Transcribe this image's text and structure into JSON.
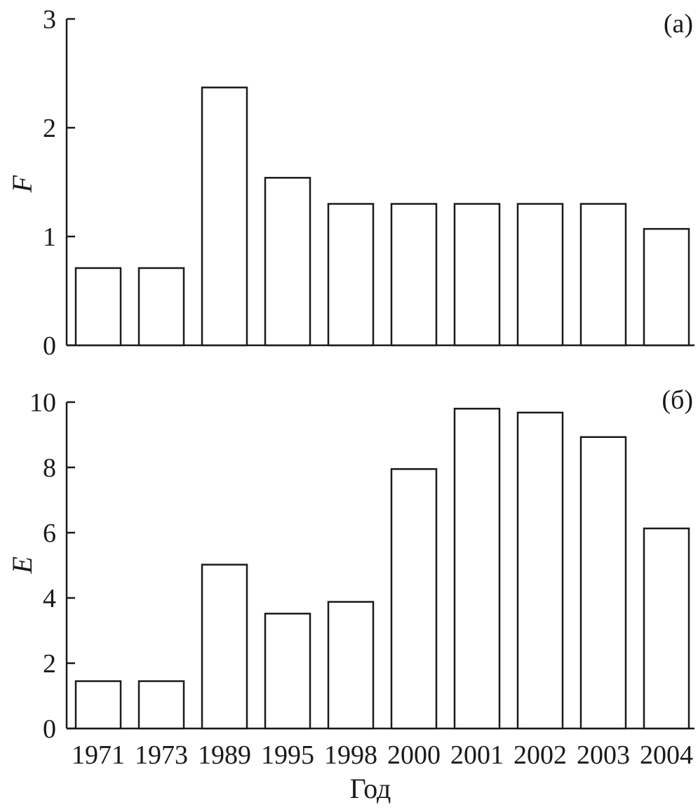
{
  "chart_data": [
    {
      "type": "bar",
      "panel_label": "(а)",
      "ylabel": "F",
      "xlabel": "",
      "categories": [
        "1971",
        "1973",
        "1989",
        "1995",
        "1998",
        "2000",
        "2001",
        "2002",
        "2003",
        "2004"
      ],
      "values": [
        0.71,
        0.71,
        2.37,
        1.54,
        1.3,
        1.3,
        1.3,
        1.3,
        1.3,
        1.07
      ],
      "ylim": [
        0,
        3
      ],
      "yticks": [
        "0",
        "1",
        "2",
        "3"
      ],
      "show_x_tick_labels": false,
      "grid": false,
      "legend": false,
      "colors": {
        "bar_fill": "#ffffff",
        "bar_stroke": "#1a1a1a"
      }
    },
    {
      "type": "bar",
      "panel_label": "(б)",
      "ylabel": "E",
      "xlabel": "Год",
      "categories": [
        "1971",
        "1973",
        "1989",
        "1995",
        "1998",
        "2000",
        "2001",
        "2002",
        "2003",
        "2004"
      ],
      "values": [
        1.45,
        1.45,
        5.02,
        3.52,
        3.88,
        7.95,
        9.8,
        9.68,
        8.93,
        6.13
      ],
      "ylim": [
        0,
        10
      ],
      "yticks": [
        "0",
        "2",
        "4",
        "6",
        "8",
        "10"
      ],
      "show_x_tick_labels": true,
      "grid": false,
      "legend": false,
      "colors": {
        "bar_fill": "#ffffff",
        "bar_stroke": "#1a1a1a"
      }
    }
  ]
}
